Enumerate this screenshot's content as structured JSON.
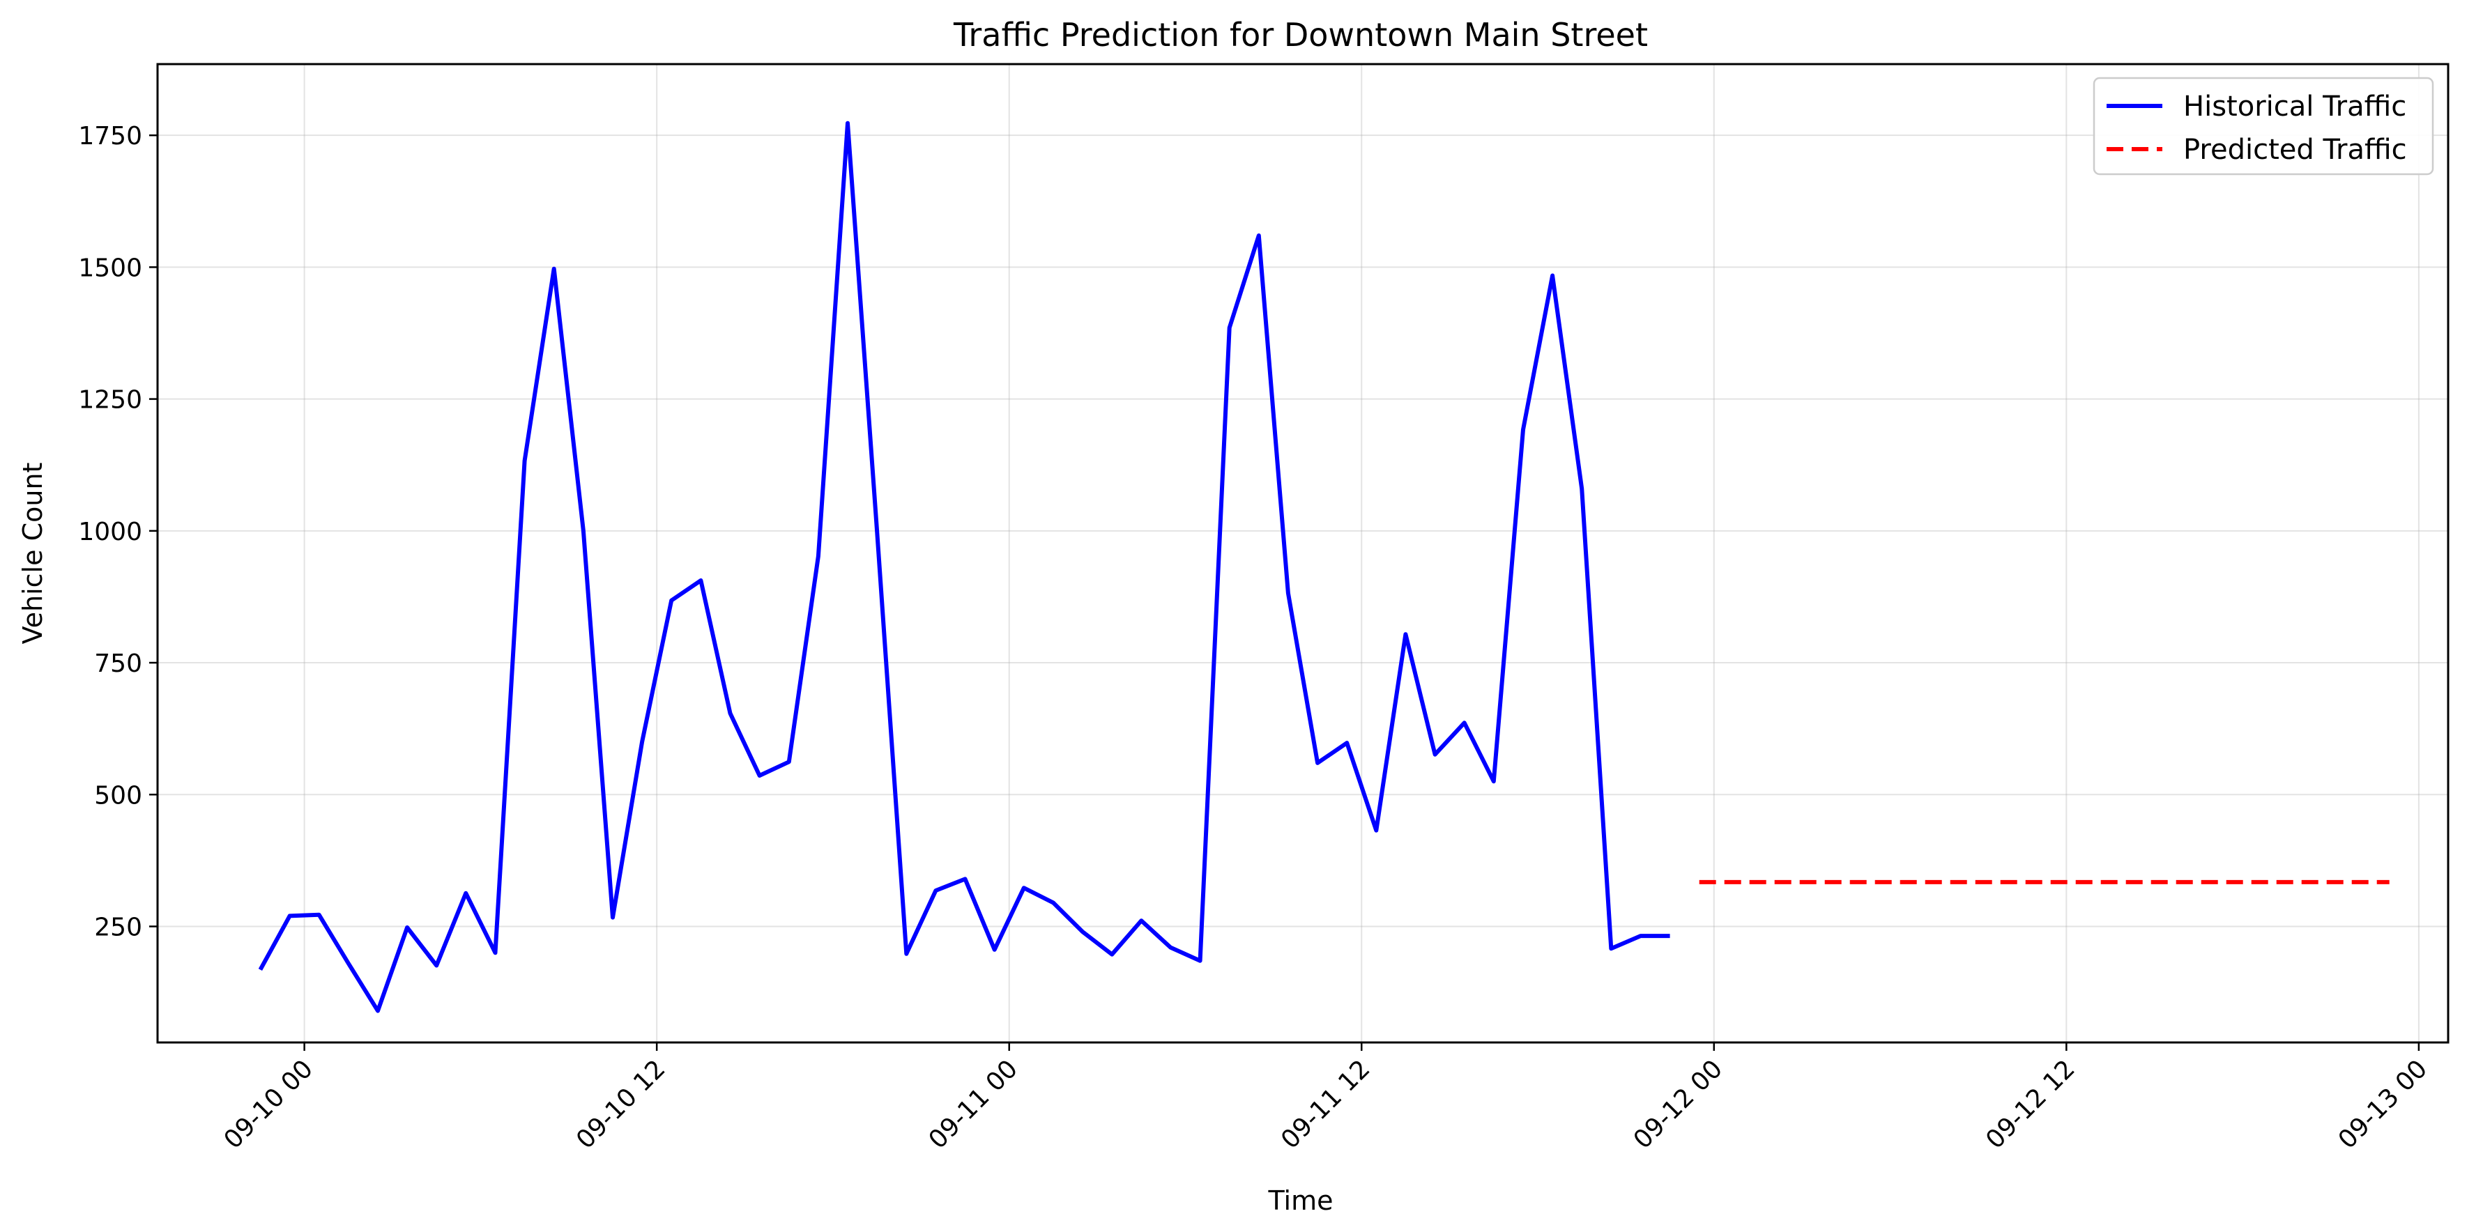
{
  "chart_data": {
    "type": "line",
    "title": "Traffic Prediction for Downtown Main Street",
    "xlabel": "Time",
    "ylabel": "Vehicle Count",
    "x_ticks": [
      "09-10 00",
      "09-10 12",
      "09-11 00",
      "09-11 12",
      "09-12 00",
      "09-12 12",
      "09-13 00"
    ],
    "x_tick_hours": [
      0,
      12,
      24,
      36,
      48,
      60,
      72
    ],
    "y_ticks": [
      250,
      500,
      750,
      1000,
      1250,
      1500,
      1750
    ],
    "xlim_hours": [
      -5,
      73
    ],
    "ylim": [
      30,
      1885
    ],
    "grid": true,
    "legend_position": "top-right",
    "series": [
      {
        "name": "Historical Traffic",
        "color": "#0000ff",
        "style": "solid",
        "x_hours": [
          -1.5,
          -0.5,
          0.5,
          1.5,
          2.5,
          3.5,
          4.5,
          5.5,
          6.5,
          7.5,
          8.5,
          9.5,
          10.5,
          11.5,
          12.5,
          13.5,
          14.5,
          15.5,
          16.5,
          17.5,
          18.5,
          19.5,
          20.5,
          21.5,
          22.5,
          23.5,
          24.5,
          25.5,
          26.5,
          27.5,
          28.5,
          29.5,
          30.5,
          31.5,
          32.5,
          33.5,
          34.5,
          35.5,
          36.5,
          37.5,
          38.5,
          39.5,
          40.5,
          41.5,
          42.5,
          43.5,
          44.5,
          45.5,
          46.5
        ],
        "values": [
          168,
          270,
          272,
          180,
          90,
          248,
          176,
          313,
          200,
          1133,
          1497,
          1000,
          267,
          600,
          868,
          906,
          654,
          536,
          562,
          952,
          1773,
          1000,
          198,
          318,
          340,
          206,
          323,
          295,
          240,
          197,
          261,
          210,
          185,
          1385,
          1560,
          882,
          560,
          598,
          432,
          804,
          576,
          636,
          525,
          1192,
          1484,
          1080,
          208,
          232,
          232
        ]
      },
      {
        "name": "Predicted Traffic",
        "color": "#ff0000",
        "style": "dashed",
        "x_hours": [
          46.5,
          47.5,
          71.0
        ],
        "values": [
          null,
          334,
          334
        ]
      }
    ]
  }
}
